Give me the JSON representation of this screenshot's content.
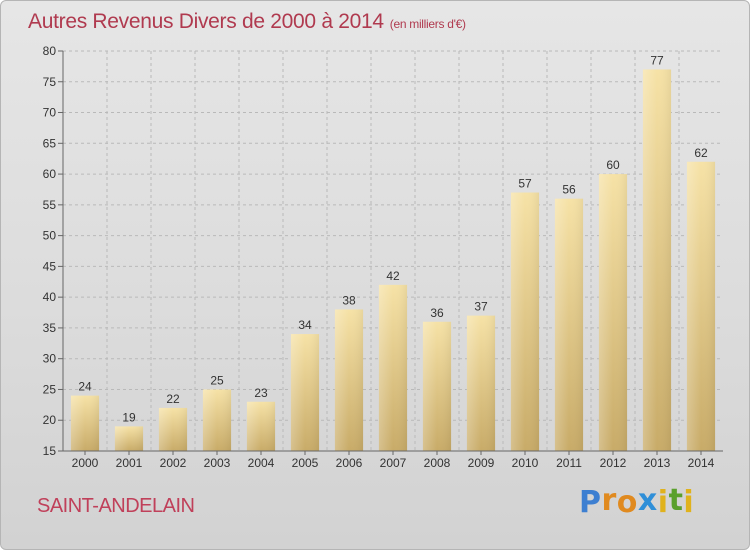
{
  "chart_data": {
    "type": "bar",
    "title": "Autres Revenus Divers de 2000 à 2014",
    "unit": "(en milliers d'€)",
    "categories": [
      "2000",
      "2001",
      "2002",
      "2003",
      "2004",
      "2005",
      "2006",
      "2007",
      "2008",
      "2009",
      "2010",
      "2011",
      "2012",
      "2013",
      "2014"
    ],
    "values": [
      24,
      19,
      22,
      25,
      23,
      34,
      38,
      42,
      36,
      37,
      57,
      56,
      60,
      77,
      62
    ],
    "ylim": [
      15,
      80
    ],
    "yticks": [
      15,
      20,
      25,
      30,
      35,
      40,
      45,
      50,
      55,
      60,
      65,
      70,
      75,
      80
    ],
    "grid": true,
    "xlabel": "",
    "ylabel": "",
    "colors": {
      "bar_light": "#f6e2a6",
      "bar_dark": "#c8ab68",
      "title": "#b03a4f",
      "grid": "#b9b9b9"
    }
  },
  "place": "SAINT-ANDELAIN",
  "logo": {
    "letters": [
      "P",
      "r",
      "o",
      "x",
      "i",
      "t",
      "i"
    ],
    "colors": [
      "#3d7fd1",
      "#e08a1f",
      "#e08a1f",
      "#2f8fd8",
      "#e0b21c",
      "#5aa02c",
      "#e0b21c"
    ]
  }
}
